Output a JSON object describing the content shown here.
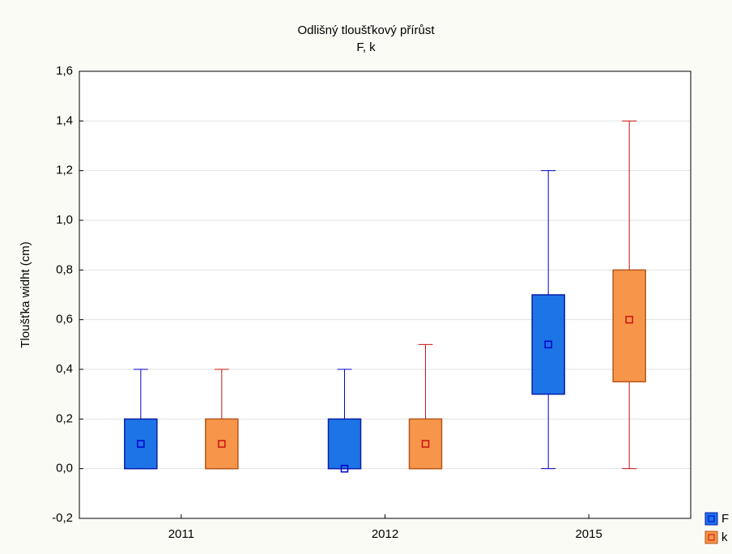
{
  "chart_data": {
    "type": "box",
    "title": "Odlišný tloušťkový přírůst",
    "subtitle": "F, k",
    "y_label": "Tloušťka widht (cm)",
    "categories": [
      "2011",
      "2012",
      "2015"
    ],
    "series": [
      {
        "name": "F",
        "color": "#1c74e6",
        "edge": "#0a1ea8",
        "whisker": "#0000cc",
        "values": [
          {
            "min": 0,
            "q1": 0,
            "median": 0.1,
            "q3": 0.2,
            "max": 0.4
          },
          {
            "min": 0,
            "q1": 0,
            "median": 0,
            "q3": 0.2,
            "max": 0.4
          },
          {
            "min": 0,
            "q1": 0.3,
            "median": 0.5,
            "q3": 0.7,
            "max": 1.2
          }
        ]
      },
      {
        "name": "k",
        "color": "#f7964a",
        "edge": "#b5561a",
        "whisker": "#cc1010",
        "values": [
          {
            "min": 0,
            "q1": 0,
            "median": 0.1,
            "q3": 0.2,
            "max": 0.4
          },
          {
            "min": 0,
            "q1": 0,
            "median": 0.1,
            "q3": 0.2,
            "max": 0.5
          },
          {
            "min": 0,
            "q1": 0.35,
            "median": 0.6,
            "q3": 0.8,
            "max": 1.4
          }
        ]
      }
    ],
    "ylim": [
      -0.2,
      1.6
    ],
    "yticks": [
      {
        "value": -0.2,
        "label": "-0,2"
      },
      {
        "value": 0,
        "label": "0,0"
      },
      {
        "value": 0.2,
        "label": "0,2"
      },
      {
        "value": 0.4,
        "label": "0,4"
      },
      {
        "value": 0.6,
        "label": "0,6"
      },
      {
        "value": 0.8,
        "label": "0,8"
      },
      {
        "value": 1.0,
        "label": "1,0"
      },
      {
        "value": 1.2,
        "label": "1,2"
      },
      {
        "value": 1.4,
        "label": "1,4"
      },
      {
        "value": 1.6,
        "label": "1,6"
      }
    ],
    "grid": true,
    "legend": "bottom-right"
  }
}
